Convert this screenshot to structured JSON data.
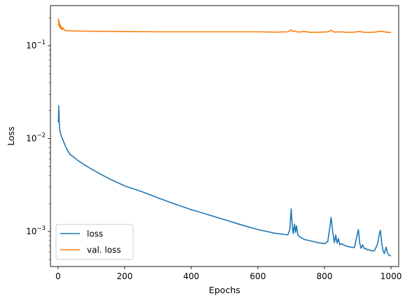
{
  "chart_data": {
    "type": "line",
    "title": "",
    "xlabel": "Epochs",
    "ylabel": "Loss",
    "xlim": [
      -23,
      1023
    ],
    "ylim": [
      0.00042,
      0.27
    ],
    "yscale": "log",
    "xticks": [
      0,
      200,
      400,
      600,
      800,
      1000
    ],
    "xtick_labels": [
      "0",
      "200",
      "400",
      "600",
      "800",
      "1000"
    ],
    "yticks": [
      0.001,
      0.01,
      0.1
    ],
    "grid": false,
    "legend": "lower-left",
    "series": [
      {
        "name": "loss",
        "color": "#1f77b4",
        "x": [
          0,
          1,
          2,
          3,
          4,
          5,
          6,
          8,
          10,
          14,
          18,
          22,
          28,
          35,
          45,
          60,
          80,
          100,
          130,
          160,
          200,
          250,
          300,
          350,
          400,
          450,
          500,
          550,
          600,
          650,
          690,
          696,
          700,
          703,
          706,
          710,
          713,
          716,
          720,
          725,
          730,
          740,
          760,
          780,
          800,
          810,
          816,
          820,
          825,
          830,
          834,
          838,
          842,
          846,
          852,
          860,
          870,
          880,
          890,
          897,
          902,
          906,
          910,
          915,
          920,
          925,
          930,
          935,
          940,
          950,
          960,
          965,
          968,
          972,
          976,
          980,
          985,
          990,
          995,
          1000
        ],
        "y": [
          0.015,
          0.016,
          0.0225,
          0.017,
          0.014,
          0.0125,
          0.0118,
          0.0112,
          0.0105,
          0.0098,
          0.009,
          0.0083,
          0.0075,
          0.0068,
          0.0064,
          0.0058,
          0.0052,
          0.0047,
          0.0041,
          0.0036,
          0.0031,
          0.0027,
          0.0023,
          0.00198,
          0.00172,
          0.00152,
          0.00134,
          0.00118,
          0.00105,
          0.00096,
          0.00092,
          0.00105,
          0.00175,
          0.0012,
          0.00095,
          0.0012,
          0.00098,
          0.00115,
          0.00092,
          0.00088,
          0.00086,
          0.00082,
          0.00079,
          0.00076,
          0.00074,
          0.00078,
          0.0011,
          0.00142,
          0.00098,
          0.00076,
          0.00092,
          0.00075,
          0.00084,
          0.00072,
          0.00074,
          0.00071,
          0.00069,
          0.00068,
          0.00067,
          0.00088,
          0.00105,
          0.00075,
          0.00066,
          0.00072,
          0.00065,
          0.00066,
          0.00063,
          0.00064,
          0.00062,
          0.00062,
          0.00074,
          0.00095,
          0.00103,
          0.00075,
          0.00062,
          0.00058,
          0.00068,
          0.00058,
          0.00055,
          0.00055
        ]
      },
      {
        "name": "val. loss",
        "color": "#ff7f0e",
        "x": [
          0,
          1,
          2,
          3,
          4,
          6,
          8,
          10,
          12,
          15,
          20,
          30,
          50,
          100,
          200,
          300,
          400,
          500,
          600,
          650,
          690,
          700,
          705,
          710,
          720,
          740,
          760,
          790,
          810,
          820,
          830,
          850,
          870,
          890,
          905,
          915,
          930,
          950,
          970,
          990,
          1000
        ],
        "y": [
          0.195,
          0.188,
          0.165,
          0.185,
          0.158,
          0.17,
          0.152,
          0.16,
          0.148,
          0.155,
          0.146,
          0.145,
          0.144,
          0.143,
          0.142,
          0.141,
          0.141,
          0.141,
          0.141,
          0.14,
          0.141,
          0.148,
          0.142,
          0.144,
          0.14,
          0.142,
          0.139,
          0.14,
          0.141,
          0.146,
          0.14,
          0.141,
          0.139,
          0.14,
          0.142,
          0.14,
          0.139,
          0.14,
          0.143,
          0.139,
          0.139
        ]
      }
    ]
  }
}
